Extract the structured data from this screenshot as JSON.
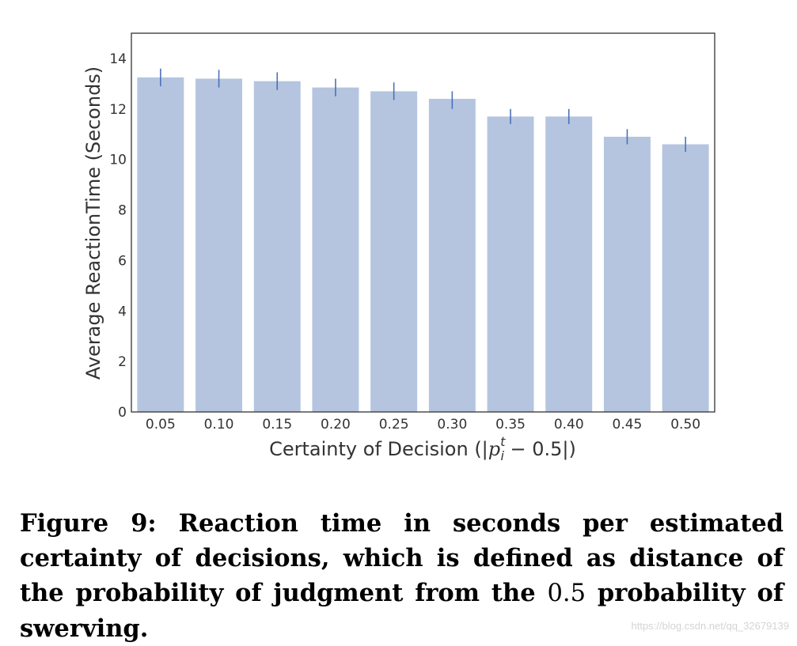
{
  "chart_data": {
    "type": "bar",
    "title": "",
    "xlabel_prefix": "Certainty of Decision (|",
    "xlabel_var": "p",
    "xlabel_sup": "t",
    "xlabel_sub": "i",
    "xlabel_suffix": " − 0.5|)",
    "ylabel": "Average ReactionTime (Seconds)",
    "categories": [
      "0.05",
      "0.10",
      "0.15",
      "0.20",
      "0.25",
      "0.30",
      "0.35",
      "0.40",
      "0.45",
      "0.50"
    ],
    "values": [
      13.25,
      13.2,
      13.1,
      12.85,
      12.7,
      12.4,
      11.7,
      11.7,
      10.9,
      10.6
    ],
    "error_low": [
      12.9,
      12.85,
      12.75,
      12.5,
      12.35,
      12.0,
      11.4,
      11.4,
      10.6,
      10.3
    ],
    "error_high": [
      13.6,
      13.55,
      13.45,
      13.2,
      13.05,
      12.7,
      12.0,
      12.0,
      11.2,
      10.9
    ],
    "ylim": [
      0,
      15
    ],
    "yticks": [
      "0",
      "2",
      "4",
      "6",
      "8",
      "10",
      "12",
      "14"
    ],
    "ytick_values": [
      0,
      2,
      4,
      6,
      8,
      10,
      12,
      14
    ],
    "bar_color": "#b5c5e0",
    "error_color": "#4a72b8",
    "grid": false
  },
  "caption": {
    "text_before": "Figure 9: Reaction time in seconds per estimated certainty of decisions, which is defined as distance of the probability of judgment from the ",
    "math_value": "0.5",
    "text_after": " probability of swerving."
  },
  "watermark": "https://blog.csdn.net/qq_32679139"
}
